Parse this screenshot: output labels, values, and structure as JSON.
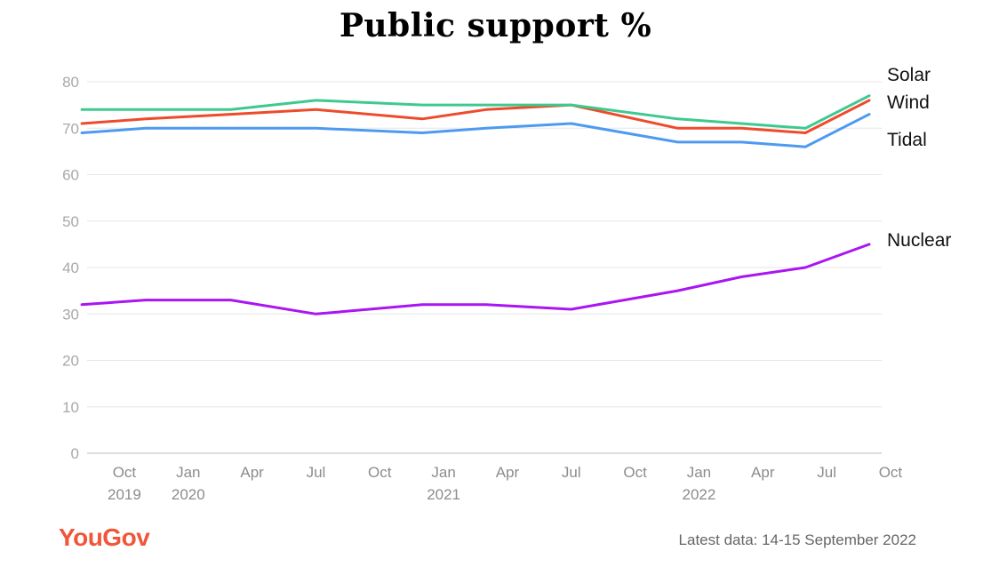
{
  "chart_data": {
    "type": "line",
    "title": "Public support %",
    "x": [
      "2019-08",
      "2019-11",
      "2020-03",
      "2020-07",
      "2020-12",
      "2021-03",
      "2021-07",
      "2021-12",
      "2022-03",
      "2022-06",
      "2022-09"
    ],
    "series": [
      {
        "name": "Solar",
        "color": "#3ec98f",
        "values": [
          74,
          74,
          74,
          76,
          75,
          75,
          75,
          72,
          71,
          70,
          77
        ]
      },
      {
        "name": "Wind",
        "color": "#ee4b2b",
        "values": [
          71,
          72,
          73,
          74,
          72,
          74,
          75,
          70,
          70,
          69,
          76
        ]
      },
      {
        "name": "Tidal",
        "color": "#4d9af0",
        "values": [
          69,
          70,
          70,
          70,
          69,
          70,
          71,
          67,
          67,
          66,
          73
        ]
      },
      {
        "name": "Nuclear",
        "color": "#a916f2",
        "values": [
          32,
          33,
          33,
          30,
          32,
          32,
          31,
          35,
          38,
          40,
          45
        ]
      }
    ],
    "ylim": [
      0,
      80
    ],
    "yticks": [
      0,
      10,
      20,
      30,
      40,
      50,
      60,
      70,
      80
    ],
    "xticks": [
      {
        "date": "2019-10",
        "label": "Oct",
        "sub": "2019"
      },
      {
        "date": "2020-01",
        "label": "Jan",
        "sub": "2020"
      },
      {
        "date": "2020-04",
        "label": "Apr",
        "sub": ""
      },
      {
        "date": "2020-07",
        "label": "Jul",
        "sub": ""
      },
      {
        "date": "2020-10",
        "label": "Oct",
        "sub": ""
      },
      {
        "date": "2021-01",
        "label": "Jan",
        "sub": "2021"
      },
      {
        "date": "2021-04",
        "label": "Apr",
        "sub": ""
      },
      {
        "date": "2021-07",
        "label": "Jul",
        "sub": ""
      },
      {
        "date": "2021-10",
        "label": "Oct",
        "sub": ""
      },
      {
        "date": "2022-01",
        "label": "Jan",
        "sub": "2022"
      },
      {
        "date": "2022-04",
        "label": "Apr",
        "sub": ""
      },
      {
        "date": "2022-07",
        "label": "Jul",
        "sub": ""
      },
      {
        "date": "2022-10",
        "label": "Oct",
        "sub": ""
      }
    ],
    "grid": true,
    "legend": "line-end labels"
  },
  "logo_text": "YouGov",
  "footnote": "Latest data: 14-15 September 2022",
  "colors": {
    "grid": "#e6e6e6",
    "axis": "#bbbbbb",
    "brand": "#f0563a"
  }
}
